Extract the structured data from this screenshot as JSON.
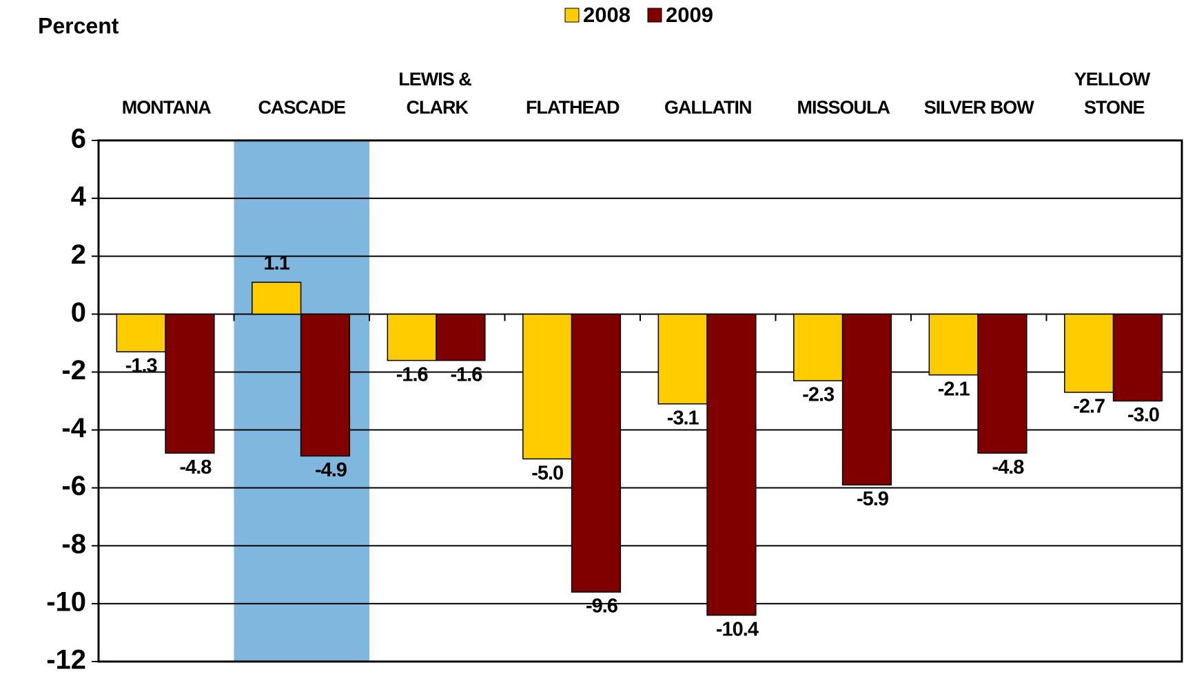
{
  "chart_data": {
    "type": "bar",
    "y_label": "Percent",
    "categories": [
      "MONTANA",
      "CASCADE",
      "LEWIS & CLARK",
      "FLATHEAD",
      "GALLATIN",
      "MISSOULA",
      "SILVER BOW",
      "YELLOW STONE"
    ],
    "series": [
      {
        "name": "2008",
        "color": "#ffcc00",
        "values": [
          -1.3,
          1.1,
          -1.6,
          -5.0,
          -3.1,
          -2.3,
          -2.1,
          -2.7
        ],
        "value_labels": [
          "-1.3",
          "1.1",
          "-1.6",
          "-5.0",
          "-3.1",
          "-2.3",
          "-2.1",
          "-2.7"
        ]
      },
      {
        "name": "2009",
        "color": "#800000",
        "values": [
          -4.8,
          -4.9,
          -1.6,
          -9.6,
          -10.4,
          -5.9,
          -4.8,
          -3.0
        ],
        "value_labels": [
          "-4.8",
          "-4.9",
          "-1.6",
          "-9.6",
          "-10.4",
          "-5.9",
          "-4.8",
          "-3.0"
        ]
      }
    ],
    "highlight": "CASCADE",
    "highlight_color": "#80b7de",
    "ylim": [
      -12,
      6
    ],
    "yticks": [
      -12,
      -10,
      -8,
      -6,
      -4,
      -2,
      0,
      2,
      4,
      6
    ],
    "grid": true
  }
}
